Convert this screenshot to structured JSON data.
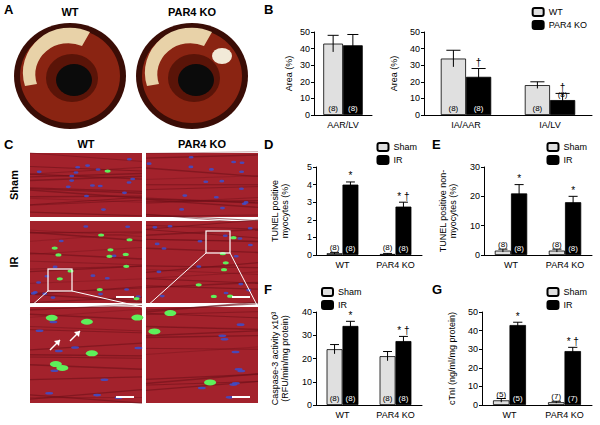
{
  "panels": {
    "A": {
      "label": "A",
      "columns": [
        "WT",
        "PAR4 KO"
      ]
    },
    "C": {
      "label": "C",
      "columns": [
        "WT",
        "PAR4 KO"
      ],
      "rows": [
        "Sham",
        "IR"
      ]
    }
  },
  "chart_data": [
    {
      "type": "bar",
      "title": "B",
      "ylabel": "Area (%)",
      "categories": [
        "AAR/LV"
      ],
      "series": [
        {
          "name": "WT",
          "color": "#e0e0e0",
          "values": [
            43
          ],
          "errors": [
            5
          ],
          "n_labels": [
            "(8)"
          ],
          "marks": [
            null
          ]
        },
        {
          "name": "PAR4 KO",
          "color": "#000000",
          "values": [
            42
          ],
          "errors": [
            6.5
          ],
          "n_labels": [
            "(8)"
          ],
          "marks": [
            null
          ]
        }
      ],
      "ylim": [
        0,
        50
      ],
      "yticks": [
        0,
        10,
        20,
        30,
        40,
        50
      ],
      "grid": false
    },
    {
      "type": "bar",
      "ylabel": "Area (%)",
      "categories": [
        "IA/AAR",
        "IA/LV"
      ],
      "series": [
        {
          "name": "WT",
          "color": "#e0e0e0",
          "values": [
            34,
            18
          ],
          "errors": [
            5,
            2
          ],
          "n_labels": [
            "(8)",
            "(8)"
          ],
          "marks": [
            null,
            null
          ]
        },
        {
          "name": "PAR4 KO",
          "color": "#000000",
          "values": [
            23,
            9
          ],
          "errors": [
            5,
            4
          ],
          "n_labels": [
            "(8)",
            "(8)"
          ],
          "marks": [
            "†",
            "†"
          ]
        }
      ],
      "ylim": [
        0,
        50
      ],
      "yticks": [
        0,
        10,
        20,
        30,
        40,
        50
      ],
      "grid": false,
      "legend": "top-right"
    },
    {
      "type": "bar",
      "title": "D",
      "ylabel": "TUNEL positive\nmyocytes (%)",
      "categories": [
        "WT",
        "PAR4 KO"
      ],
      "series": [
        {
          "name": "Sham",
          "color": "#e0e0e0",
          "values": [
            0.1,
            0.06
          ],
          "errors": [
            0.05,
            0.03
          ],
          "n_labels": [
            "(8)",
            "(8)"
          ],
          "marks": [
            null,
            null
          ]
        },
        {
          "name": "IR",
          "color": "#000000",
          "values": [
            4.0,
            2.75
          ],
          "errors": [
            0.15,
            0.25
          ],
          "n_labels": [
            "(8)",
            "(8)"
          ],
          "marks": [
            "*",
            "* †"
          ]
        }
      ],
      "ylim": [
        0,
        5
      ],
      "yticks": [
        0,
        1,
        2,
        3,
        4,
        5
      ],
      "grid": false,
      "legend": "top-right"
    },
    {
      "type": "bar",
      "title": "E",
      "ylabel": "TUNEL positive non-\nmyocytes (%)",
      "categories": [
        "WT",
        "PAR4 KO"
      ],
      "series": [
        {
          "name": "Sham",
          "color": "#e0e0e0",
          "values": [
            1.5,
            1.5
          ],
          "errors": [
            0.5,
            0.5
          ],
          "n_labels": [
            "(8)",
            "(8)"
          ],
          "marks": [
            null,
            null
          ]
        },
        {
          "name": "IR",
          "color": "#000000",
          "values": [
            21,
            18
          ],
          "errors": [
            3,
            2
          ],
          "n_labels": [
            "(8)",
            "(8)"
          ],
          "marks": [
            "*",
            "*"
          ]
        }
      ],
      "ylim": [
        0,
        30
      ],
      "yticks": [
        0,
        10,
        20,
        30
      ],
      "grid": false,
      "legend": "top-right"
    },
    {
      "type": "bar",
      "title": "F",
      "ylabel": "Caspase-3 activity x10³\n(RFU/min/mg protein)",
      "categories": [
        "WT",
        "PAR4 KO"
      ],
      "series": [
        {
          "name": "Sham",
          "color": "#e0e0e0",
          "values": [
            24,
            21
          ],
          "errors": [
            2,
            2
          ],
          "n_labels": [
            "(8)",
            "(8)"
          ],
          "marks": [
            null,
            null
          ]
        },
        {
          "name": "IR",
          "color": "#000000",
          "values": [
            34,
            27.5
          ],
          "errors": [
            2,
            2
          ],
          "n_labels": [
            "(8)",
            "(8)"
          ],
          "marks": [
            "*",
            "* †"
          ]
        }
      ],
      "ylim": [
        0,
        40
      ],
      "yticks": [
        0,
        10,
        20,
        30,
        40
      ],
      "grid": false,
      "legend": "top-left"
    },
    {
      "type": "bar",
      "title": "G",
      "ylabel": "cTnI (ng/ml/mg protein)",
      "categories": [
        "WT",
        "PAR4 KO"
      ],
      "series": [
        {
          "name": "Sham",
          "color": "#e0e0e0",
          "values": [
            2.5,
            1.5
          ],
          "errors": [
            1,
            0.5
          ],
          "n_labels": [
            "(5)",
            "(7)"
          ],
          "marks": [
            null,
            null
          ]
        },
        {
          "name": "IR",
          "color": "#000000",
          "values": [
            43,
            29
          ],
          "errors": [
            1.5,
            2
          ],
          "n_labels": [
            "(5)",
            "(7)"
          ],
          "marks": [
            "*",
            "* †"
          ]
        }
      ],
      "ylim": [
        0,
        50
      ],
      "yticks": [
        0,
        10,
        20,
        30,
        40,
        50
      ],
      "grid": false,
      "legend": "top-right"
    }
  ]
}
